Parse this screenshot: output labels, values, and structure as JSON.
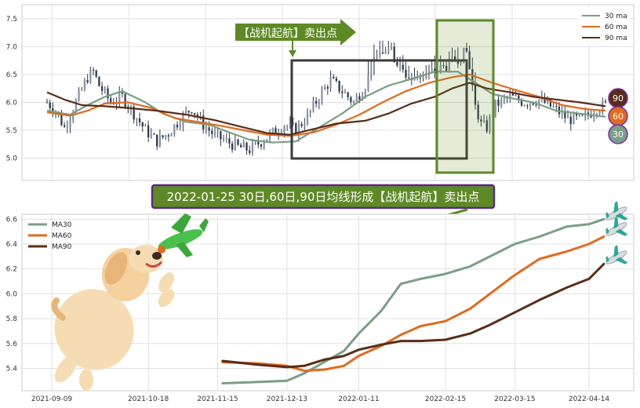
{
  "chart_data": [
    {
      "type": "candlestick",
      "ylim": [
        4.6,
        7.75
      ],
      "yticks": [
        "5.0",
        "5.5",
        "6.0",
        "6.5",
        "7.0",
        "7.5"
      ],
      "legend": {
        "placement": "top-right",
        "entries": [
          {
            "label": "30 ma",
            "color": "#7a9e86"
          },
          {
            "label": "60 ma",
            "color": "#e06b1e"
          },
          {
            "label": "90 ma",
            "color": "#5a2d18"
          }
        ]
      },
      "callout": "【战机起航】卖出点",
      "badges": [
        {
          "label": "90",
          "value": 6.15,
          "fill": "#5a2d18"
        },
        {
          "label": "60",
          "value": 5.84,
          "fill": "#e06b1e"
        },
        {
          "label": "30",
          "value": 5.65,
          "fill": "#7a9e86"
        }
      ],
      "price_anchors": [
        [
          0,
          6.0
        ],
        [
          3,
          5.85
        ],
        [
          6,
          5.55
        ],
        [
          10,
          6.0
        ],
        [
          14,
          6.45
        ],
        [
          16,
          6.55
        ],
        [
          18,
          6.3
        ],
        [
          22,
          6.0
        ],
        [
          26,
          6.1
        ],
        [
          30,
          5.8
        ],
        [
          34,
          5.5
        ],
        [
          38,
          5.3
        ],
        [
          42,
          5.45
        ],
        [
          46,
          5.7
        ],
        [
          50,
          5.9
        ],
        [
          54,
          5.6
        ],
        [
          58,
          5.4
        ],
        [
          62,
          5.3
        ],
        [
          66,
          5.2
        ],
        [
          70,
          5.15
        ],
        [
          74,
          5.3
        ],
        [
          78,
          5.45
        ],
        [
          82,
          5.6
        ],
        [
          86,
          5.5
        ],
        [
          90,
          5.75
        ],
        [
          94,
          6.1
        ],
        [
          98,
          6.4
        ],
        [
          102,
          6.2
        ],
        [
          106,
          6.0
        ],
        [
          110,
          6.3
        ],
        [
          114,
          6.9
        ],
        [
          118,
          7.0
        ],
        [
          122,
          6.6
        ],
        [
          126,
          6.4
        ],
        [
          130,
          6.5
        ],
        [
          134,
          6.55
        ],
        [
          138,
          6.65
        ],
        [
          142,
          6.8
        ],
        [
          145,
          6.9
        ],
        [
          148,
          6.0
        ],
        [
          150,
          5.6
        ],
        [
          152,
          5.55
        ],
        [
          155,
          5.95
        ],
        [
          160,
          6.1
        ],
        [
          165,
          6.0
        ],
        [
          170,
          6.05
        ],
        [
          175,
          5.9
        ],
        [
          180,
          5.7
        ],
        [
          185,
          5.7
        ],
        [
          190,
          5.9
        ],
        [
          193,
          5.95
        ]
      ],
      "ma30": [
        [
          0,
          5.85
        ],
        [
          8,
          5.78
        ],
        [
          14,
          5.95
        ],
        [
          20,
          6.1
        ],
        [
          26,
          6.2
        ],
        [
          34,
          6.0
        ],
        [
          40,
          5.8
        ],
        [
          48,
          5.65
        ],
        [
          56,
          5.6
        ],
        [
          62,
          5.48
        ],
        [
          70,
          5.33
        ],
        [
          78,
          5.28
        ],
        [
          86,
          5.3
        ],
        [
          94,
          5.55
        ],
        [
          102,
          5.8
        ],
        [
          110,
          6.1
        ],
        [
          118,
          6.3
        ],
        [
          126,
          6.42
        ],
        [
          134,
          6.55
        ],
        [
          142,
          6.55
        ],
        [
          148,
          6.35
        ],
        [
          154,
          6.15
        ],
        [
          160,
          6.08
        ],
        [
          168,
          6.0
        ],
        [
          176,
          5.85
        ],
        [
          184,
          5.8
        ],
        [
          193,
          5.74
        ]
      ],
      "ma60": [
        [
          0,
          5.82
        ],
        [
          8,
          5.76
        ],
        [
          14,
          5.85
        ],
        [
          20,
          5.98
        ],
        [
          28,
          6.0
        ],
        [
          36,
          5.9
        ],
        [
          44,
          5.72
        ],
        [
          52,
          5.65
        ],
        [
          60,
          5.58
        ],
        [
          68,
          5.5
        ],
        [
          76,
          5.42
        ],
        [
          84,
          5.4
        ],
        [
          92,
          5.46
        ],
        [
          100,
          5.6
        ],
        [
          108,
          5.78
        ],
        [
          116,
          6.0
        ],
        [
          124,
          6.2
        ],
        [
          132,
          6.35
        ],
        [
          140,
          6.45
        ],
        [
          146,
          6.5
        ],
        [
          154,
          6.35
        ],
        [
          162,
          6.22
        ],
        [
          170,
          6.1
        ],
        [
          178,
          5.95
        ],
        [
          186,
          5.88
        ],
        [
          193,
          5.85
        ]
      ],
      "ma90": [
        [
          0,
          6.18
        ],
        [
          6,
          6.05
        ],
        [
          12,
          5.95
        ],
        [
          20,
          5.93
        ],
        [
          28,
          5.9
        ],
        [
          38,
          5.85
        ],
        [
          48,
          5.78
        ],
        [
          58,
          5.68
        ],
        [
          68,
          5.55
        ],
        [
          76,
          5.45
        ],
        [
          84,
          5.42
        ],
        [
          92,
          5.52
        ],
        [
          100,
          5.62
        ],
        [
          110,
          5.67
        ],
        [
          118,
          5.8
        ],
        [
          126,
          5.98
        ],
        [
          134,
          6.1
        ],
        [
          140,
          6.25
        ],
        [
          146,
          6.35
        ],
        [
          152,
          6.25
        ],
        [
          160,
          6.18
        ],
        [
          168,
          6.1
        ],
        [
          176,
          6.05
        ],
        [
          184,
          6.0
        ],
        [
          193,
          5.93
        ]
      ]
    },
    {
      "type": "line",
      "title": "2022-01-25 30日,60日,90日均线形成【战机起航】卖出点",
      "ylim": [
        5.22,
        6.64
      ],
      "yticks": [
        "5.4",
        "5.6",
        "5.8",
        "6.0",
        "6.2",
        "6.4",
        "6.6"
      ],
      "xticks": [
        "2021-09-09",
        "2021-10-18",
        "2021-11-15",
        "2021-12-13",
        "2022-01-11",
        "2022-02-15",
        "2022-03-15",
        "2022-04-14"
      ],
      "legend": {
        "placement": "top-left",
        "entries": [
          {
            "label": "MA30",
            "color": "#7a9e86"
          },
          {
            "label": "MA60",
            "color": "#e06b1e"
          },
          {
            "label": "MA90",
            "color": "#5a2d18"
          }
        ]
      },
      "x": [
        "2021-11-17",
        "2021-12-01",
        "2021-12-13",
        "2021-12-20",
        "2021-12-28",
        "2022-01-05",
        "2022-01-11",
        "2022-01-20",
        "2022-01-28",
        "2022-02-05",
        "2022-02-15",
        "2022-02-25",
        "2022-03-05",
        "2022-03-15",
        "2022-03-25",
        "2022-04-05",
        "2022-04-14",
        "2022-04-20"
      ],
      "series": [
        {
          "name": "MA30",
          "color": "#7a9e86",
          "values": [
            5.28,
            5.29,
            5.3,
            5.36,
            5.45,
            5.54,
            5.68,
            5.86,
            6.08,
            6.12,
            6.16,
            6.22,
            6.3,
            6.4,
            6.46,
            6.54,
            6.56,
            6.6
          ]
        },
        {
          "name": "MA60",
          "color": "#e06b1e",
          "values": [
            5.45,
            5.44,
            5.42,
            5.38,
            5.39,
            5.42,
            5.5,
            5.58,
            5.67,
            5.74,
            5.78,
            5.88,
            6.0,
            6.15,
            6.28,
            6.34,
            6.4,
            6.46
          ]
        },
        {
          "name": "MA90",
          "color": "#5a2d18",
          "values": [
            5.46,
            5.43,
            5.41,
            5.42,
            5.47,
            5.5,
            5.55,
            5.59,
            5.62,
            5.62,
            5.63,
            5.68,
            5.75,
            5.85,
            5.95,
            6.05,
            6.12,
            6.24
          ]
        }
      ]
    }
  ]
}
